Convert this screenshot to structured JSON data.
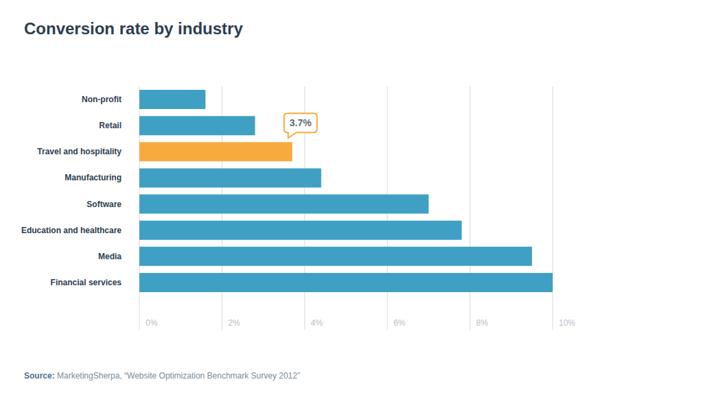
{
  "chart_data": {
    "type": "bar",
    "title": "Conversion rate by industry",
    "orientation": "horizontal",
    "categories": [
      "Non-profit",
      "Retail",
      "Travel and hospitality",
      "Manufacturing",
      "Software",
      "Education and healthcare",
      "Media",
      "Financial services"
    ],
    "values": [
      1.6,
      2.8,
      3.7,
      4.4,
      7.0,
      7.8,
      9.5,
      10.0
    ],
    "value_labels": [
      null,
      null,
      "3.7%",
      null,
      null,
      null,
      null,
      null
    ],
    "data_labels": true,
    "colors": [
      "#3fa0c3",
      "#3fa0c3",
      "#f7ab3f",
      "#3fa0c3",
      "#3fa0c3",
      "#3fa0c3",
      "#3fa0c3",
      "#3fa0c3"
    ],
    "xlim": [
      0,
      10
    ],
    "xticks": [
      {
        "value": 0,
        "label": "0%"
      },
      {
        "value": 2,
        "label": "2%"
      },
      {
        "value": 4,
        "label": "4%"
      },
      {
        "value": 6,
        "label": "6%"
      },
      {
        "value": 8,
        "label": "8%"
      },
      {
        "value": 10,
        "label": "10%"
      }
    ],
    "grid": true,
    "source_label": "Source:",
    "source": "MarketingSherpa, “Website Optimization Benchmark Survey 2012”"
  }
}
